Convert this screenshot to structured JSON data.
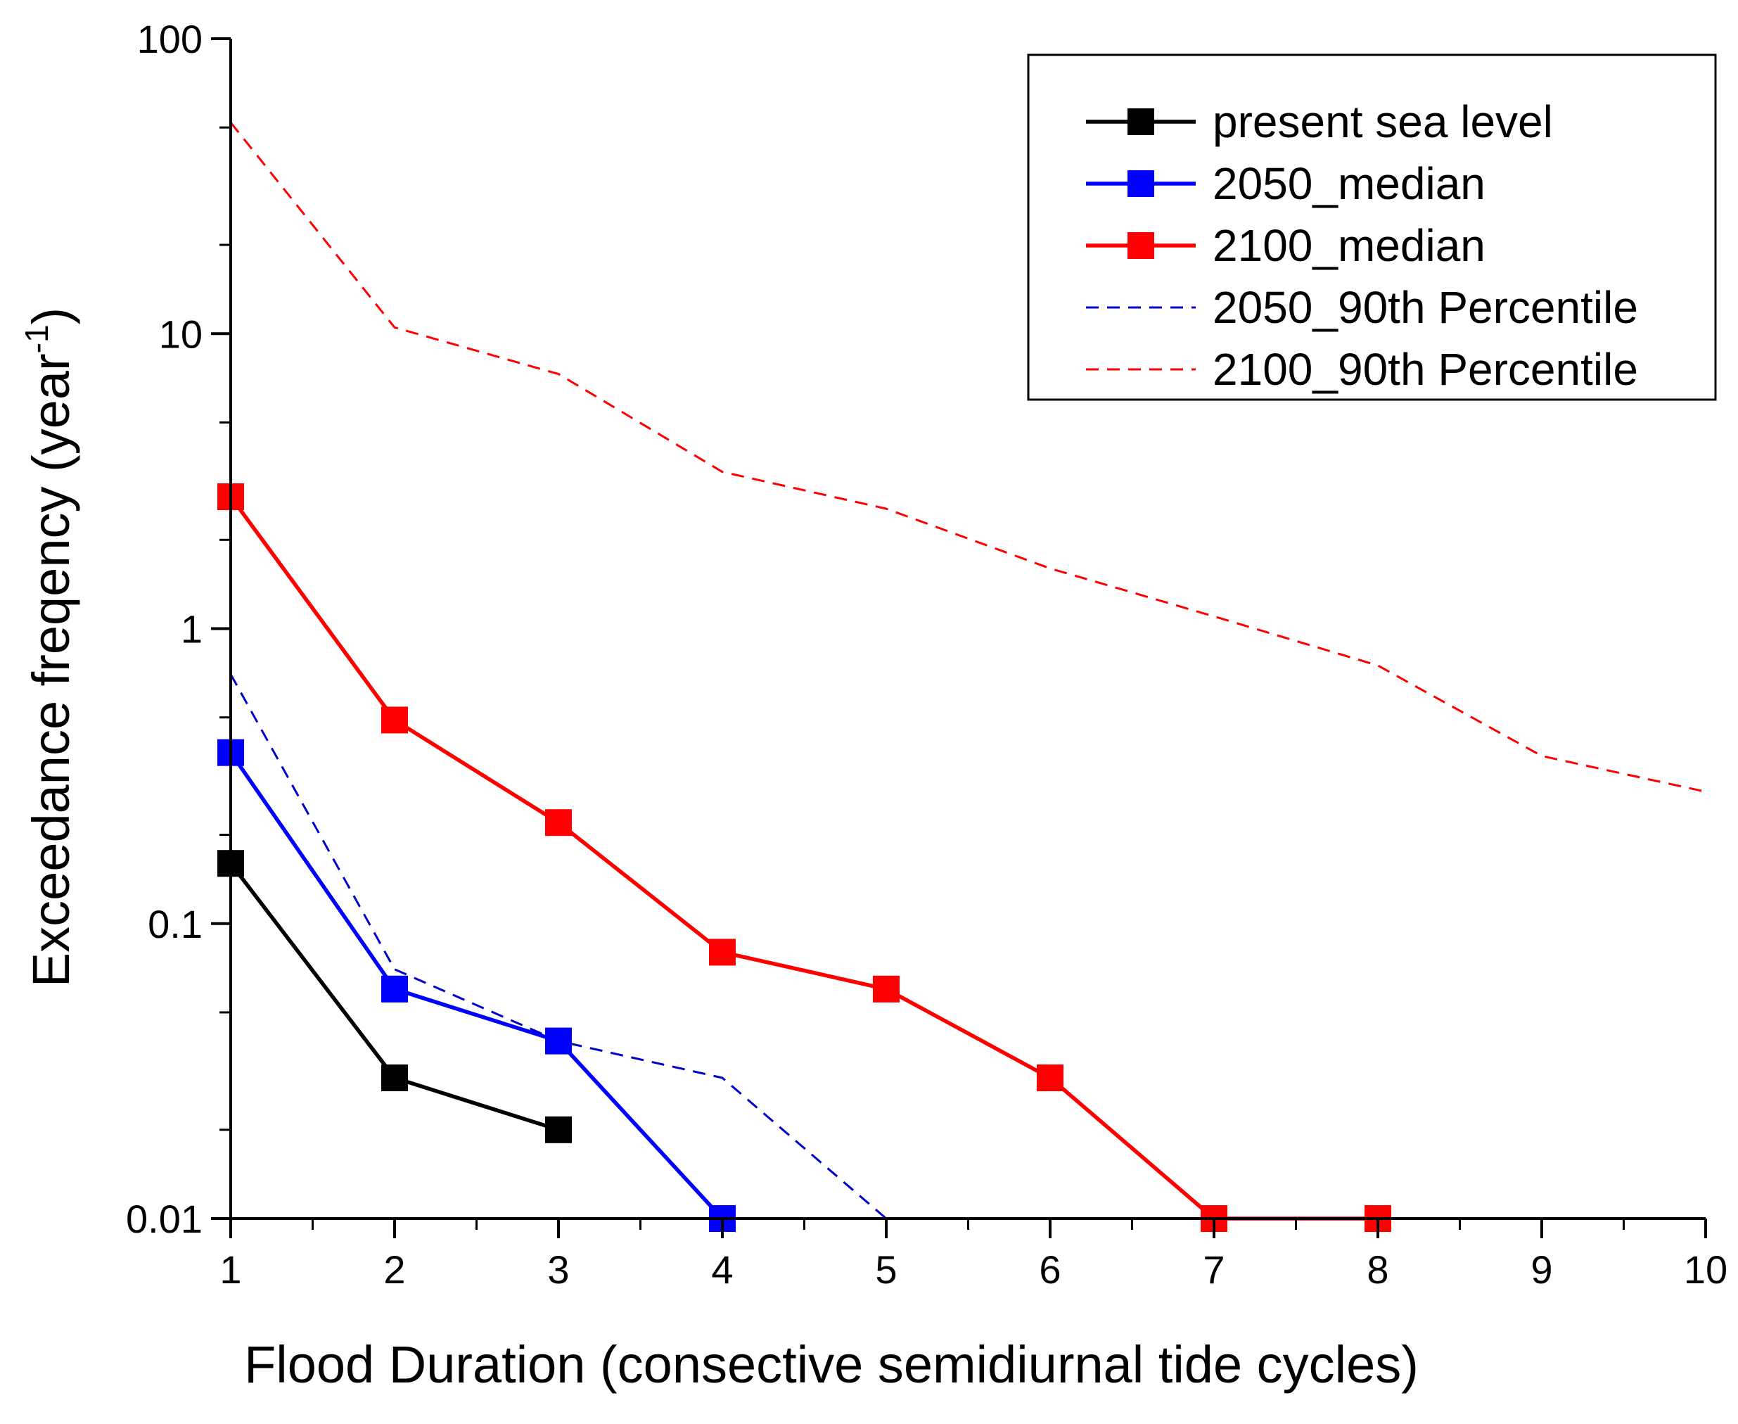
{
  "chart_data": {
    "type": "line",
    "title": "",
    "xlabel": "Flood Duration (consective semidiurnal tide cycles)",
    "ylabel_main": "Exceedance freqency (year",
    "ylabel_sup": "-1",
    "ylabel_tail": ")",
    "x_scale": "linear",
    "y_scale": "log",
    "xlim": [
      1,
      10
    ],
    "ylim": [
      0.01,
      100
    ],
    "x_ticks": [
      1,
      2,
      3,
      4,
      5,
      6,
      7,
      8,
      9,
      10
    ],
    "x_tick_labels": [
      "1",
      "2",
      "3",
      "4",
      "5",
      "6",
      "7",
      "8",
      "9",
      "10"
    ],
    "y_ticks": [
      0.01,
      0.1,
      1,
      10,
      100
    ],
    "y_tick_labels": [
      "0.01",
      "0.1",
      "1",
      "10",
      "100"
    ],
    "grid": false,
    "legend_position": "top-right",
    "series": [
      {
        "name": "present sea level",
        "color": "#000000",
        "style": "solid",
        "marker": "square",
        "x": [
          1,
          2,
          3
        ],
        "values": [
          0.16,
          0.03,
          0.02
        ]
      },
      {
        "name": "2050_median",
        "color": "#0000ff",
        "style": "solid",
        "marker": "square",
        "x": [
          1,
          2,
          3,
          4
        ],
        "values": [
          0.38,
          0.06,
          0.04,
          0.01
        ]
      },
      {
        "name": "2100_median",
        "color": "#ff0000",
        "style": "solid",
        "marker": "square",
        "x": [
          1,
          2,
          3,
          4,
          5,
          6,
          7,
          8
        ],
        "values": [
          2.8,
          0.49,
          0.22,
          0.08,
          0.06,
          0.03,
          0.01,
          0.01
        ]
      },
      {
        "name": "2050_90th Percentile",
        "color": "#0000cc",
        "style": "dashed",
        "marker": "none",
        "x": [
          1,
          2,
          3,
          4,
          5
        ],
        "values": [
          0.7,
          0.07,
          0.04,
          0.03,
          0.01
        ]
      },
      {
        "name": "2100_90th Percentile",
        "color": "#ff0000",
        "style": "dashed",
        "marker": "none",
        "x": [
          1,
          2,
          3,
          4,
          5,
          6,
          7,
          8,
          9,
          10
        ],
        "values": [
          52,
          10.5,
          7.3,
          3.4,
          2.55,
          1.6,
          1.1,
          0.75,
          0.37,
          0.28
        ]
      }
    ]
  }
}
